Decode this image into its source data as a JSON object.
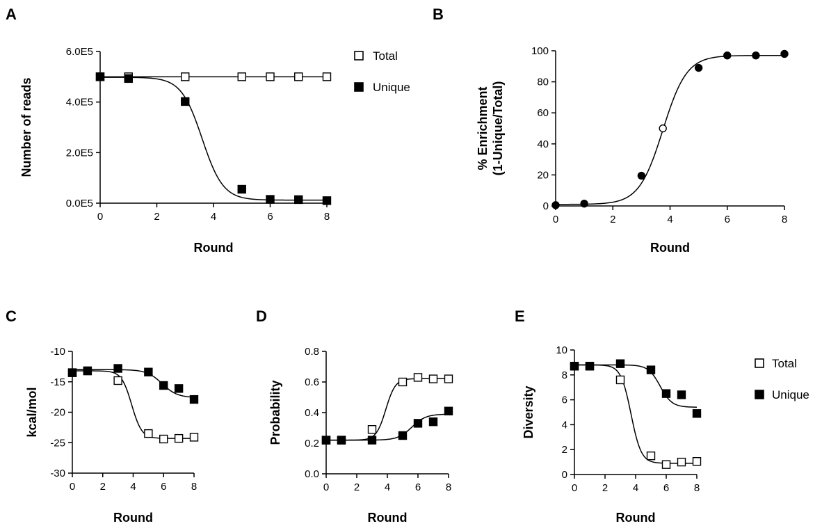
{
  "figure": {
    "panels": [
      "A",
      "B",
      "C",
      "D",
      "E"
    ]
  },
  "legend_top": {
    "total_label": "Total",
    "unique_label": "Unique"
  },
  "legend_bottom": {
    "total_label": "Total",
    "unique_label": "Unique"
  },
  "chart_data": [
    {
      "panel": "A",
      "type": "scatter",
      "xlabel": "Round",
      "ylabel": "Number of reads",
      "xlim": [
        0,
        8
      ],
      "ylim": [
        0,
        600000
      ],
      "xticks": [
        0,
        2,
        4,
        6,
        8
      ],
      "yticks": [
        0,
        200000,
        400000,
        600000
      ],
      "ytick_labels": [
        "0.0E5",
        "2.0E5",
        "4.0E5",
        "6.0E5"
      ],
      "grid": false,
      "legend": "right",
      "series": [
        {
          "name": "Total",
          "marker": "open-square",
          "x": [
            0,
            1,
            3,
            5,
            6,
            7,
            8
          ],
          "y": [
            500000,
            500000,
            500000,
            500000,
            500000,
            500000,
            500000
          ]
        },
        {
          "name": "Unique",
          "marker": "filled-square",
          "x": [
            0,
            1,
            3,
            5,
            6,
            7,
            8
          ],
          "y": [
            500000,
            493000,
            402000,
            55000,
            15000,
            14000,
            10000
          ]
        }
      ]
    },
    {
      "panel": "B",
      "type": "scatter",
      "xlabel": "Round",
      "ylabel_lines": [
        "% Enrichment",
        "(1-Unique/Total)"
      ],
      "xlim": [
        0,
        8
      ],
      "ylim": [
        0,
        100
      ],
      "xticks": [
        0,
        2,
        4,
        6,
        8
      ],
      "yticks": [
        0,
        20,
        40,
        60,
        80,
        100
      ],
      "grid": false,
      "series": [
        {
          "marker": "filled-circle",
          "x": [
            0,
            1,
            3,
            5,
            6,
            7,
            8
          ],
          "y": [
            0.5,
            1.5,
            19.5,
            89,
            97,
            97,
            98
          ]
        },
        {
          "marker": "open-circle",
          "x": [
            3.75
          ],
          "y": [
            50
          ]
        }
      ]
    },
    {
      "panel": "C",
      "type": "scatter",
      "xlabel": "Round",
      "ylabel": "kcal/mol",
      "xlim": [
        0,
        8
      ],
      "ylim": [
        -30,
        -10
      ],
      "xticks": [
        0,
        2,
        4,
        6,
        8
      ],
      "yticks": [
        -30,
        -25,
        -20,
        -15,
        -10
      ],
      "grid": false,
      "series": [
        {
          "name": "Total",
          "marker": "open-square",
          "x": [
            0,
            1,
            3,
            5,
            6,
            7,
            8
          ],
          "y": [
            -13.5,
            -13.2,
            -14.8,
            -23.5,
            -24.4,
            -24.3,
            -24.1
          ]
        },
        {
          "name": "Unique",
          "marker": "filled-square",
          "x": [
            0,
            1,
            3,
            5,
            6,
            7,
            8
          ],
          "y": [
            -13.5,
            -13.2,
            -12.8,
            -13.4,
            -15.6,
            -16.1,
            -17.9
          ]
        }
      ]
    },
    {
      "panel": "D",
      "type": "scatter",
      "xlabel": "Round",
      "ylabel": "Probability",
      "xlim": [
        0,
        8
      ],
      "ylim": [
        0,
        0.8
      ],
      "xticks": [
        0,
        2,
        4,
        6,
        8
      ],
      "yticks": [
        0,
        0.2,
        0.4,
        0.6,
        0.8
      ],
      "ytick_labels": [
        "0.0",
        "0.2",
        "0.4",
        "0.6",
        "0.8"
      ],
      "grid": false,
      "series": [
        {
          "name": "Total",
          "marker": "open-square",
          "x": [
            0,
            1,
            3,
            5,
            6,
            7,
            8
          ],
          "y": [
            0.22,
            0.22,
            0.29,
            0.6,
            0.63,
            0.62,
            0.62
          ]
        },
        {
          "name": "Unique",
          "marker": "filled-square",
          "x": [
            0,
            1,
            3,
            5,
            6,
            7,
            8
          ],
          "y": [
            0.22,
            0.22,
            0.22,
            0.25,
            0.33,
            0.34,
            0.41
          ]
        }
      ]
    },
    {
      "panel": "E",
      "type": "scatter",
      "xlabel": "Round",
      "ylabel": "Diversity",
      "xlim": [
        0,
        8
      ],
      "ylim": [
        0,
        10
      ],
      "xticks": [
        0,
        2,
        4,
        6,
        8
      ],
      "yticks": [
        0,
        2,
        4,
        6,
        8,
        10
      ],
      "grid": false,
      "legend": "right",
      "series": [
        {
          "name": "Total",
          "marker": "open-square",
          "x": [
            0,
            1,
            3,
            5,
            6,
            7,
            8
          ],
          "y": [
            8.7,
            8.7,
            7.6,
            1.5,
            0.8,
            1.0,
            1.05
          ]
        },
        {
          "name": "Unique",
          "marker": "filled-square",
          "x": [
            0,
            1,
            3,
            5,
            6,
            7,
            8
          ],
          "y": [
            8.7,
            8.7,
            8.9,
            8.4,
            6.5,
            6.4,
            4.9
          ]
        }
      ]
    }
  ]
}
